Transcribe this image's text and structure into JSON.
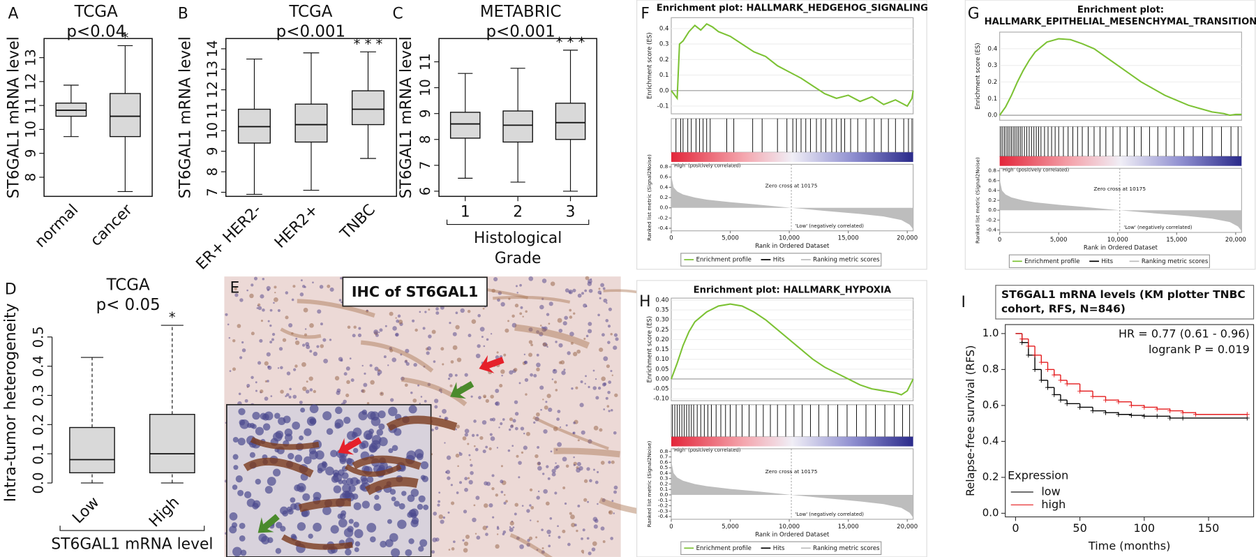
{
  "chart_data": [
    {
      "type": "box",
      "panel": "A",
      "title": "TCGA",
      "subtitle": "p<0.04",
      "ylabel": "ST6GAL1 mRNA level",
      "categories": [
        "normal",
        "cancer"
      ],
      "boxes": [
        {
          "min": 9.7,
          "q1": 10.55,
          "median": 10.8,
          "q3": 11.1,
          "max": 11.85
        },
        {
          "min": 7.4,
          "q1": 9.7,
          "median": 10.55,
          "q3": 11.5,
          "max": 13.5
        }
      ],
      "significance": [
        null,
        "*"
      ],
      "ylim": [
        7.2,
        13.8
      ],
      "yticks": [
        8,
        9,
        10,
        11,
        12,
        13
      ],
      "color": "#d9d9d9",
      "frame": true,
      "whisker_style": "solid",
      "xtick_rotation": 45
    },
    {
      "type": "box",
      "panel": "B",
      "title": "TCGA",
      "subtitle": "p<0.001",
      "ylabel": "ST6GAL1 mRNA level",
      "categories": [
        "ER+ HER2-",
        "HER2+",
        "TNBC"
      ],
      "boxes": [
        {
          "min": 6.9,
          "q1": 9.4,
          "median": 10.2,
          "q3": 11.05,
          "max": 13.5
        },
        {
          "min": 7.1,
          "q1": 9.45,
          "median": 10.3,
          "q3": 11.3,
          "max": 13.8
        },
        {
          "min": 8.65,
          "q1": 10.3,
          "median": 11.05,
          "q3": 11.95,
          "max": 13.85
        }
      ],
      "significance": [
        null,
        null,
        "* * *"
      ],
      "ylim": [
        6.8,
        14.5
      ],
      "yticks": [
        7,
        8,
        9,
        10,
        11,
        12,
        13,
        14
      ],
      "color": "#d9d9d9",
      "frame": true,
      "whisker_style": "solid",
      "xtick_rotation": 45
    },
    {
      "type": "box",
      "panel": "C",
      "title": "METABRIC",
      "subtitle": "p<0.001",
      "ylabel": "ST6GAL1 mRNA level",
      "xlabel_lines": [
        "Histological",
        "Grade"
      ],
      "categories": [
        "1",
        "2",
        "3"
      ],
      "boxes": [
        {
          "min": 6.5,
          "q1": 8.05,
          "median": 8.6,
          "q3": 9.05,
          "max": 10.55
        },
        {
          "min": 6.35,
          "q1": 7.9,
          "median": 8.55,
          "q3": 9.1,
          "max": 10.75
        },
        {
          "min": 6.0,
          "q1": 8.0,
          "median": 8.65,
          "q3": 9.4,
          "max": 11.45
        }
      ],
      "significance": [
        null,
        null,
        "* * *"
      ],
      "ylim": [
        5.8,
        11.9
      ],
      "yticks": [
        6,
        7,
        8,
        9,
        10,
        11
      ],
      "color": "#d9d9d9",
      "frame": true,
      "whisker_style": "solid",
      "xtick_rotation": 0
    },
    {
      "type": "box",
      "panel": "D",
      "title": "TCGA",
      "subtitle": "p< 0.05",
      "ylabel": "Intra-tumor  heterogeneity",
      "xlabel_lines": [
        "ST6GAL1 mRNA level"
      ],
      "categories": [
        "Low",
        "High"
      ],
      "boxes": [
        {
          "min": 0,
          "q1": 0.035,
          "median": 0.08,
          "q3": 0.19,
          "max": 0.43
        },
        {
          "min": 0,
          "q1": 0.035,
          "median": 0.1,
          "q3": 0.235,
          "max": 0.54
        }
      ],
      "significance": [
        null,
        "*"
      ],
      "ylim": [
        -0.02,
        0.57
      ],
      "yticks": [
        {
          "value": 0,
          "label": "0.0"
        },
        0.1,
        0.2,
        0.3,
        0.4,
        0.5
      ],
      "color": "#d9d9d9",
      "frame": false,
      "whisker_style": "dashed",
      "xtick_rotation": 45
    },
    {
      "type": "gsea",
      "panel": "F",
      "title_lines": [
        "Enrichment plot: HALLMARK_HEDGEHOG_SIGNALING"
      ],
      "ylabel": "Enrichment score (ES)",
      "metric_ylabel": "Ranked list metric (Signal2Noise)",
      "xlabel": "Rank in Ordered Dataset",
      "high_label": "'High' (positively correlated)",
      "low_label": "'Low' (negatively correlated)",
      "zero_cross_label": "Zero cross at 10175",
      "legend": [
        "Enrichment profile",
        "Hits",
        "Ranking metric scores"
      ],
      "es_color": "#7cc234",
      "hit_color": "#000000",
      "metric_color": "#bdbdbd",
      "x": [
        0,
        500,
        700,
        1000,
        1500,
        2000,
        2500,
        3000,
        3500,
        4000,
        5000,
        6000,
        7000,
        8000,
        9000,
        10000,
        11000,
        12000,
        13000,
        14000,
        15000,
        16000,
        17000,
        18000,
        19000,
        20000,
        20400,
        20500
      ],
      "values": [
        0,
        -0.05,
        0.3,
        0.32,
        0.38,
        0.42,
        0.39,
        0.43,
        0.41,
        0.38,
        0.35,
        0.3,
        0.25,
        0.22,
        0.16,
        0.12,
        0.08,
        0.03,
        -0.02,
        -0.05,
        -0.03,
        -0.07,
        -0.04,
        -0.09,
        -0.06,
        -0.1,
        -0.05,
        0.0
      ],
      "hits": [
        400,
        800,
        1000,
        1400,
        1700,
        2100,
        2400,
        2700,
        3000,
        3300,
        4700,
        5300,
        6900,
        7700,
        9000,
        9800,
        10300,
        10600,
        11000,
        11400,
        11800,
        12300,
        12700,
        13100,
        13600,
        14000,
        14400,
        14700,
        15200,
        15800,
        16500,
        17200,
        17800,
        18400,
        19000,
        19700,
        20100,
        20400
      ],
      "metric_x": [
        0,
        200,
        500,
        1000,
        2000,
        3000,
        5000,
        7000,
        10175,
        13000,
        16000,
        18000,
        19500,
        20200,
        20500
      ],
      "metric": [
        0.62,
        0.4,
        0.32,
        0.26,
        0.2,
        0.16,
        0.11,
        0.07,
        0,
        -0.06,
        -0.12,
        -0.17,
        -0.24,
        -0.33,
        -0.42
      ],
      "xlim": [
        0,
        20500
      ],
      "xticks": [
        0,
        {
          "value": 5000,
          "label": "5,000"
        },
        {
          "value": 10000,
          "label": "10,000"
        },
        {
          "value": 15000,
          "label": "15,000"
        },
        {
          "value": 20000,
          "label": "20,000"
        }
      ],
      "ylim": [
        -0.15,
        0.47
      ],
      "yticks": [
        -0.1,
        {
          "value": 0,
          "label": "0.0"
        },
        0.1,
        0.2,
        0.3,
        0.4
      ],
      "metric_ylim": [
        -0.45,
        0.85
      ],
      "metric_yticks": [
        0.8,
        0.6,
        0.4,
        0.2,
        {
          "value": 0,
          "label": "0.0"
        },
        -0.2,
        -0.4
      ]
    },
    {
      "type": "gsea",
      "panel": "G",
      "title_lines": [
        "Enrichment plot:",
        "HALLMARK_EPITHELIAL_MESENCHYMAL_TRANSITION"
      ],
      "ylabel": "Enrichment score (ES)",
      "metric_ylabel": "Ranked list metric (Signal2Noise)",
      "xlabel": "Rank in Ordered Dataset",
      "high_label": "'High' (positively correlated)",
      "low_label": "'Low' (negatively correlated)",
      "zero_cross_label": "Zero cross at 10175",
      "legend": [
        "Enrichment profile",
        "Hits",
        "Ranking metric scores"
      ],
      "es_color": "#7cc234",
      "hit_color": "#000000",
      "metric_color": "#bdbdbd",
      "x": [
        0,
        500,
        1000,
        1500,
        2000,
        2500,
        3000,
        3500,
        4000,
        5000,
        6000,
        7000,
        8000,
        9000,
        10000,
        11000,
        12000,
        13000,
        14000,
        15000,
        16000,
        17000,
        18000,
        19000,
        19500,
        20000,
        20500
      ],
      "values": [
        0,
        0.05,
        0.12,
        0.2,
        0.27,
        0.33,
        0.38,
        0.41,
        0.44,
        0.46,
        0.455,
        0.43,
        0.4,
        0.35,
        0.3,
        0.25,
        0.2,
        0.16,
        0.12,
        0.09,
        0.06,
        0.04,
        0.02,
        0.01,
        0,
        0.005,
        0.005
      ],
      "hits": [
        100,
        250,
        400,
        550,
        700,
        850,
        1000,
        1150,
        1300,
        1450,
        1600,
        1750,
        1900,
        2100,
        2300,
        2500,
        2700,
        2900,
        3100,
        3300,
        3500,
        3800,
        4100,
        4400,
        4700,
        5000,
        5400,
        5800,
        6200,
        6600,
        7000,
        7500,
        8000,
        8500,
        9000,
        9600,
        10200,
        10800,
        11400,
        12000,
        12700,
        13400,
        14100,
        14800,
        15600,
        16400,
        17200,
        18000,
        18800,
        19600,
        20200
      ],
      "metric_x": [
        0,
        200,
        500,
        1000,
        2000,
        3000,
        5000,
        7000,
        10175,
        13000,
        16000,
        18000,
        19500,
        20200,
        20500
      ],
      "metric": [
        0.62,
        0.4,
        0.32,
        0.26,
        0.2,
        0.16,
        0.11,
        0.07,
        0,
        -0.06,
        -0.12,
        -0.17,
        -0.24,
        -0.33,
        -0.42
      ],
      "xlim": [
        0,
        20500
      ],
      "xticks": [
        0,
        {
          "value": 5000,
          "label": "5,000"
        },
        {
          "value": 10000,
          "label": "10,000"
        },
        {
          "value": 15000,
          "label": "15,000"
        },
        {
          "value": 20000,
          "label": "20,000"
        }
      ],
      "ylim": [
        -0.03,
        0.5
      ],
      "yticks": [
        {
          "value": 0,
          "label": "0.0"
        },
        0.1,
        0.2,
        0.3,
        0.4
      ],
      "metric_ylim": [
        -0.45,
        0.85
      ],
      "metric_yticks": [
        0.8,
        0.6,
        0.4,
        0.2,
        {
          "value": 0,
          "label": "0.0"
        },
        -0.2,
        -0.4
      ]
    },
    {
      "type": "gsea",
      "panel": "H",
      "title_lines": [
        "Enrichment plot: HALLMARK_HYPOXIA"
      ],
      "ylabel": "Enrichment score (ES)",
      "metric_ylabel": "Ranked list metric (Signal2Noise)",
      "xlabel": "Rank in Ordered Dataset",
      "high_label": "'High' (positively correlated)",
      "low_label": "'Low' (negatively correlated)",
      "zero_cross_label": "Zero cross at 10175",
      "legend": [
        "Enrichment profile",
        "Hits",
        "Ranking metric scores"
      ],
      "es_color": "#7cc234",
      "hit_color": "#000000",
      "metric_color": "#bdbdbd",
      "x": [
        0,
        500,
        1000,
        1500,
        2000,
        3000,
        4000,
        5000,
        6000,
        7000,
        8000,
        9000,
        10000,
        11000,
        12000,
        13000,
        14000,
        15000,
        16000,
        17000,
        18000,
        19000,
        19500,
        20000,
        20500
      ],
      "values": [
        0,
        0.08,
        0.17,
        0.24,
        0.29,
        0.34,
        0.37,
        0.38,
        0.37,
        0.34,
        0.3,
        0.25,
        0.2,
        0.15,
        0.1,
        0.06,
        0.03,
        0.0,
        -0.03,
        -0.05,
        -0.06,
        -0.07,
        -0.08,
        -0.06,
        0.0
      ],
      "hits": [
        100,
        300,
        500,
        700,
        900,
        1100,
        1300,
        1500,
        1700,
        1900,
        2200,
        2500,
        2800,
        3100,
        3400,
        3800,
        4200,
        4600,
        5000,
        5500,
        6000,
        6600,
        7200,
        7800,
        8400,
        9000,
        9700,
        10400,
        11100,
        11800,
        12500,
        13300,
        14100,
        14900,
        15700,
        16500,
        17300,
        18100,
        18900,
        19600,
        20200
      ],
      "metric_x": [
        0,
        200,
        500,
        1000,
        2000,
        3000,
        5000,
        7000,
        10175,
        13000,
        16000,
        18000,
        19500,
        20200,
        20500
      ],
      "metric": [
        0.62,
        0.4,
        0.32,
        0.26,
        0.2,
        0.16,
        0.11,
        0.07,
        0,
        -0.06,
        -0.12,
        -0.17,
        -0.24,
        -0.33,
        -0.42
      ],
      "xlim": [
        0,
        20500
      ],
      "xticks": [
        0,
        {
          "value": 5000,
          "label": "5,000"
        },
        {
          "value": 10000,
          "label": "10,000"
        },
        {
          "value": 15000,
          "label": "15,000"
        },
        {
          "value": 20000,
          "label": "20,000"
        }
      ],
      "ylim": [
        -0.11,
        0.41
      ],
      "yticks": [
        {
          "value": -0.1,
          "label": "-0.10"
        },
        {
          "value": -0.05,
          "label": "-0.05"
        },
        {
          "value": 0,
          "label": "0.00"
        },
        {
          "value": 0.05,
          "label": "0.05"
        },
        {
          "value": 0.1,
          "label": "0.10"
        },
        {
          "value": 0.15,
          "label": "0.15"
        },
        {
          "value": 0.2,
          "label": "0.20"
        },
        {
          "value": 0.25,
          "label": "0.25"
        },
        {
          "value": 0.3,
          "label": "0.30"
        },
        {
          "value": 0.35,
          "label": "0.35"
        },
        {
          "value": 0.4,
          "label": "0.40"
        }
      ],
      "metric_ylim": [
        -0.45,
        0.85
      ],
      "metric_yticks": [
        0.8,
        0.7,
        0.6,
        0.5,
        0.4,
        0.3,
        0.2,
        0.1,
        {
          "value": 0,
          "label": "0.0"
        },
        -0.1,
        -0.2,
        -0.3,
        -0.4
      ]
    },
    {
      "type": "km",
      "panel": "I",
      "title_lines": [
        "ST6GAL1 mRNA levels (KM plotter TNBC",
        "cohort, RFS, N=846)"
      ],
      "annotations": [
        "HR = 0.77 (0.61 - 0.96)",
        "logrank P = 0.019"
      ],
      "ylabel": "Relapse-free survival (RFS)",
      "xlabel": "Time (months)",
      "legend_title": "Expression",
      "series": [
        {
          "name": "low",
          "color": "#000000",
          "x": [
            0,
            5,
            10,
            15,
            20,
            25,
            30,
            35,
            40,
            50,
            60,
            70,
            80,
            90,
            100,
            110,
            120,
            130,
            180
          ],
          "values": [
            1,
            0.95,
            0.88,
            0.8,
            0.74,
            0.7,
            0.66,
            0.63,
            0.61,
            0.59,
            0.57,
            0.56,
            0.55,
            0.545,
            0.54,
            0.54,
            0.53,
            0.53,
            0.53
          ]
        },
        {
          "name": "high",
          "color": "#e41a1c",
          "x": [
            0,
            5,
            10,
            15,
            20,
            25,
            30,
            35,
            40,
            50,
            60,
            70,
            80,
            90,
            100,
            110,
            120,
            130,
            140,
            180
          ],
          "values": [
            1,
            0.97,
            0.93,
            0.88,
            0.84,
            0.8,
            0.77,
            0.74,
            0.72,
            0.68,
            0.65,
            0.63,
            0.62,
            0.6,
            0.59,
            0.58,
            0.57,
            0.56,
            0.55,
            0.55
          ]
        }
      ],
      "xlim": [
        -8,
        185
      ],
      "xticks": [
        0,
        50,
        100,
        150
      ],
      "ylim": [
        -0.02,
        1.05
      ],
      "yticks": [
        {
          "value": 0,
          "label": "0.0"
        },
        0.2,
        0.4,
        0.6,
        0.8,
        {
          "value": 1,
          "label": "1.0"
        }
      ]
    }
  ],
  "image_panel": {
    "panel": "E",
    "caption": "IHC of ST6GAL1"
  }
}
